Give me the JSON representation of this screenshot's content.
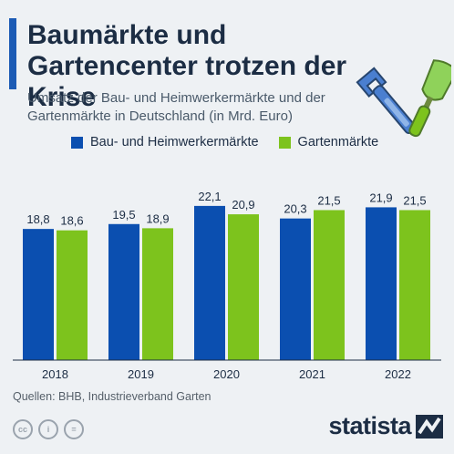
{
  "header": {
    "title": "Baumärkte und Gartencenter trotzen der Krise",
    "subtitle": "Umsatz der Bau- und Heimwerkermärkte und der Gartenmärkte in Deutschland (in Mrd. Euro)"
  },
  "footer": {
    "sources": "Quellen: BHB, Industrieverband Garten",
    "license_icons": [
      "cc-icon",
      "person-icon",
      "equal-icon"
    ],
    "brand": "statista"
  },
  "colors": {
    "accent": "#1c5bb5",
    "series1": "#0b4fb0",
    "series2": "#7dc31d",
    "text": "#1c2d44"
  },
  "chart_data": {
    "type": "bar",
    "categories": [
      "2018",
      "2019",
      "2020",
      "2021",
      "2022"
    ],
    "series": [
      {
        "name": "Bau- und Heimwerkermärkte",
        "values": [
          18.8,
          19.5,
          22.1,
          20.3,
          21.9
        ],
        "labels": [
          "18,8",
          "19,5",
          "22,1",
          "20,3",
          "21,9"
        ],
        "color": "#0b4fb0"
      },
      {
        "name": "Gartenmärkte",
        "values": [
          18.6,
          18.9,
          20.9,
          21.5,
          21.5
        ],
        "labels": [
          "18,6",
          "18,9",
          "20,9",
          "21,5",
          "21,5"
        ],
        "color": "#7dc31d"
      }
    ],
    "xlabel": "",
    "ylabel": "",
    "ylim": [
      0,
      23
    ],
    "grid": false,
    "legend": "top-left"
  }
}
